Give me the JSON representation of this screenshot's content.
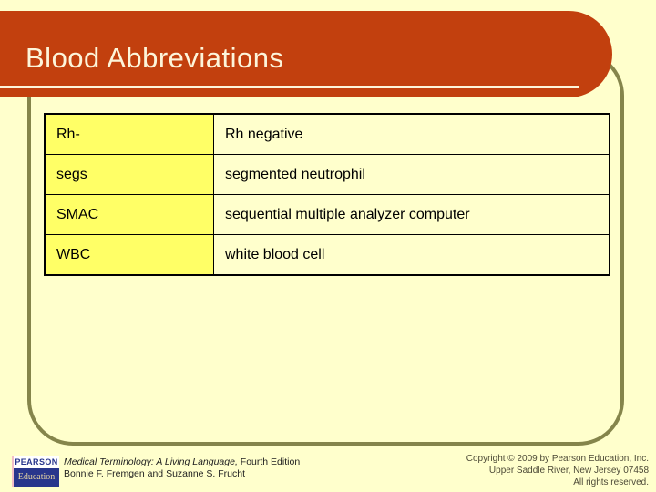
{
  "slide": {
    "title": "Blood Abbreviations"
  },
  "table": {
    "rows": [
      {
        "abbr": "Rh-",
        "meaning": "Rh negative"
      },
      {
        "abbr": "segs",
        "meaning": "segmented neutrophil"
      },
      {
        "abbr": "SMAC",
        "meaning": "sequential multiple analyzer computer"
      },
      {
        "abbr": "WBC",
        "meaning": "white blood cell"
      }
    ]
  },
  "footer": {
    "logo": {
      "top": "PEARSON",
      "bottom": "Education"
    },
    "book_title_italic": "Medical Terminology: A Living Language,",
    "book_edition": " Fourth Edition",
    "authors": "Bonnie F. Fremgen and Suzanne S. Frucht",
    "copyright_lines": [
      "Copyright © 2009 by Pearson Education, Inc.",
      "Upper Saddle River, New Jersey 07458",
      "All rights reserved."
    ]
  },
  "colors": {
    "page_background": "#FFFFCC",
    "title_bar": "#C2400E",
    "title_text": "#FDF5DA",
    "frame_outline": "#85854B",
    "abbr_cell": "#FFFF66",
    "meaning_cell": "#FFFFCC",
    "logo_navy": "#28368C"
  }
}
